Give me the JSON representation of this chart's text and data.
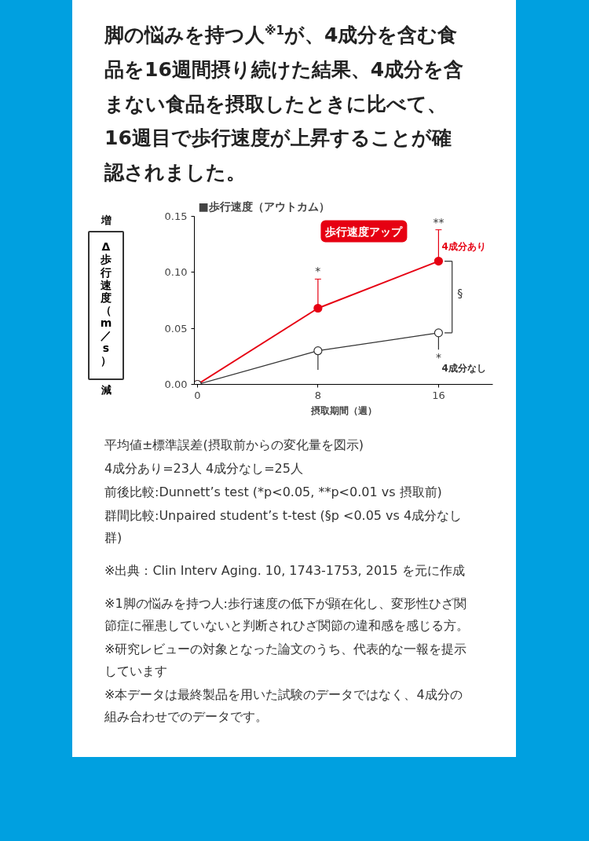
{
  "chart_data": {
    "type": "line",
    "title": "脚の悩みを持つ人$^{※1}$が、4成分を含む食品を16週間摂り続けた結果、4成分を含まない食品を摂取したときに比べて、16週目で歩行速度が上昇することが確認されました。",
    "subtitle": "■歩行速度（アウトカム）",
    "xlabel": "摂取期間（週）",
    "ylabel": "Δ歩行速度（m／s）",
    "x": [
      0,
      8,
      16
    ],
    "series": [
      {
        "name": "4成分あり",
        "color": "#e60012",
        "values": [
          0,
          0.068,
          0.11
        ],
        "errors": [
          null,
          [
            0.068,
            0.094
          ],
          [
            0.11,
            0.138
          ]
        ]
      },
      {
        "name": "4成分なし",
        "color": "#333333",
        "values": [
          0,
          0.03,
          0.046
        ],
        "errors": [
          null,
          [
            0.013,
            0.03
          ],
          [
            0.031,
            0.046
          ]
        ]
      }
    ],
    "xlim": [
      -0.2,
      19.6
    ],
    "ylim": [
      0,
      0.15
    ],
    "xticks": [
      0,
      8,
      16
    ],
    "yticks": [
      {
        "value": 0,
        "label": "0.00"
      },
      {
        "value": 0.05,
        "label": "0.05"
      },
      {
        "value": 0.1,
        "label": "0.10"
      },
      {
        "value": 0.15,
        "label": "0.15"
      }
    ],
    "grid": false,
    "legend": false,
    "marker": "circle",
    "line_style": "solid",
    "annotations": [
      "増",
      "減",
      "歩行速度アップ",
      "*",
      "**",
      "*",
      "§",
      "平均値±標準誤差(摂取前からの変化量を図示)",
      "4成分あり=23人 4成分なし=25人",
      "前後比較:Dunnett’s test (*p<0.05, **p<0.01 vs 摂取前)",
      "群間比較:Unpaired student’s t-test (§p <0.05 vs 4成分なし群)",
      "※出典：Clin Interv Aging. 10, 1743-1753, 2015 を元に作成",
      "※1脚の悩みを持つ人:歩行速度の低下が顕在化し、変形性ひざ関節症に罹患していないと判断されひざ関節の違和感を感じる方。",
      "※研究レビューの対象となった論文のうち、代表的な一報を提示しています",
      "※本データは最終製品を用いた試験のデータではなく、4成分の組み合わせでのデータです。"
    ]
  }
}
